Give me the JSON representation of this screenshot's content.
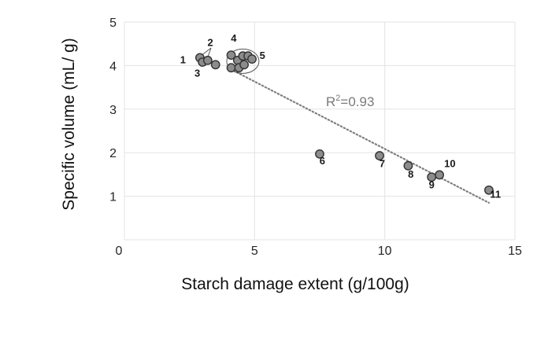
{
  "chart_data": {
    "type": "scatter",
    "title": "",
    "xlabel": "Starch damage extent (g/100g)",
    "ylabel": "Specific volume (mL/ g)",
    "xlim": [
      0,
      15
    ],
    "ylim": [
      0,
      5
    ],
    "x_ticks": [
      "0",
      "5",
      "10",
      "15"
    ],
    "y_ticks": [
      "1",
      "2",
      "3",
      "4",
      "5"
    ],
    "grid": true,
    "legend": "none",
    "marker_color": "#8c8c8c",
    "marker_edge_color": "#333333",
    "trendline": {
      "style": "dotted linear",
      "color": "#7f7f7f",
      "x": [
        4.2,
        14.0
      ],
      "y": [
        3.88,
        0.85
      ],
      "annotation": "R²=0.93"
    },
    "points": [
      {
        "x": 2.9,
        "y": 4.18
      },
      {
        "x": 3.0,
        "y": 4.08
      },
      {
        "x": 3.2,
        "y": 4.12
      },
      {
        "x": 3.5,
        "y": 4.02
      },
      {
        "x": 4.1,
        "y": 4.24
      },
      {
        "x": 4.1,
        "y": 3.95
      },
      {
        "x": 4.35,
        "y": 4.12
      },
      {
        "x": 4.4,
        "y": 3.95
      },
      {
        "x": 4.55,
        "y": 4.22
      },
      {
        "x": 4.6,
        "y": 4.02
      },
      {
        "x": 4.75,
        "y": 4.22
      },
      {
        "x": 4.9,
        "y": 4.15
      },
      {
        "x": 7.5,
        "y": 1.97
      },
      {
        "x": 9.8,
        "y": 1.93
      },
      {
        "x": 10.9,
        "y": 1.7
      },
      {
        "x": 11.8,
        "y": 1.44
      },
      {
        "x": 12.1,
        "y": 1.49
      },
      {
        "x": 14.0,
        "y": 1.14
      }
    ],
    "point_labels": [
      {
        "text": "1",
        "x": 2.25,
        "y": 4.05
      },
      {
        "text": "2",
        "x": 3.3,
        "y": 4.45
      },
      {
        "text": "3",
        "x": 2.8,
        "y": 3.75
      },
      {
        "text": "4",
        "x": 4.2,
        "y": 4.55
      },
      {
        "text": "5",
        "x": 5.3,
        "y": 4.15
      },
      {
        "text": "6",
        "x": 7.6,
        "y": 1.73
      },
      {
        "text": "7",
        "x": 9.9,
        "y": 1.67
      },
      {
        "text": "8",
        "x": 11.0,
        "y": 1.43
      },
      {
        "text": "9",
        "x": 11.8,
        "y": 1.18
      },
      {
        "text": "10",
        "x": 12.5,
        "y": 1.67
      },
      {
        "text": "11",
        "x": 14.25,
        "y": 0.97
      }
    ],
    "cluster_ellipse": {
      "cx": 4.55,
      "cy": 4.1,
      "rx": 0.62,
      "ry": 0.28
    }
  }
}
